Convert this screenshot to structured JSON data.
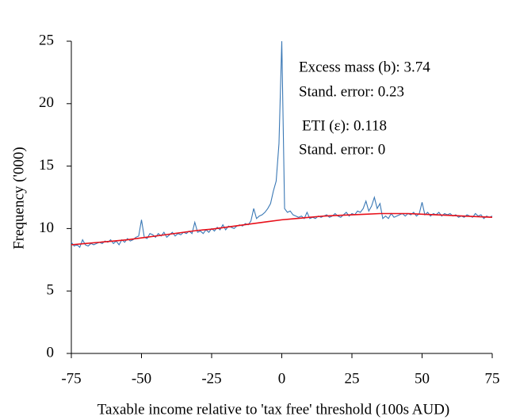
{
  "chart_data": {
    "type": "line",
    "xlabel": "Taxable income relative to 'tax free' threshold (100s AUD)",
    "ylabel": "Frequency ('000)",
    "annotations": [
      "Excess mass (b): 3.74",
      "Stand. error: 0.23",
      "ETI (ε): 0.118",
      "Stand. error: 0"
    ],
    "xlim": [
      -75,
      75
    ],
    "ylim": [
      0,
      25
    ],
    "xticks": [
      -75,
      -50,
      -25,
      0,
      25,
      50,
      75
    ],
    "yticks": [
      0,
      5,
      10,
      15,
      20,
      25
    ],
    "series": [
      {
        "color": "#3a78b5",
        "x": [
          -75,
          -74,
          -73,
          -72,
          -71,
          -70,
          -69,
          -68,
          -67,
          -66,
          -65,
          -64,
          -63,
          -62,
          -61,
          -60,
          -59,
          -58,
          -57,
          -56,
          -55,
          -54,
          -53,
          -52,
          -51,
          -50,
          -49,
          -48,
          -47,
          -46,
          -45,
          -44,
          -43,
          -42,
          -41,
          -40,
          -39,
          -38,
          -37,
          -36,
          -35,
          -34,
          -33,
          -32,
          -31,
          -30,
          -29,
          -28,
          -27,
          -26,
          -25,
          -24,
          -23,
          -22,
          -21,
          -20,
          -19,
          -18,
          -17,
          -16,
          -15,
          -14,
          -13,
          -12,
          -11,
          -10,
          -9,
          -8,
          -7,
          -6,
          -5,
          -4,
          -3,
          -2,
          -1,
          0,
          1,
          2,
          3,
          4,
          5,
          6,
          7,
          8,
          9,
          10,
          11,
          12,
          13,
          14,
          15,
          16,
          17,
          18,
          19,
          20,
          21,
          22,
          23,
          24,
          25,
          26,
          27,
          28,
          29,
          30,
          31,
          32,
          33,
          34,
          35,
          36,
          37,
          38,
          39,
          40,
          41,
          42,
          43,
          44,
          45,
          46,
          47,
          48,
          49,
          50,
          51,
          52,
          53,
          54,
          55,
          56,
          57,
          58,
          59,
          60,
          61,
          62,
          63,
          64,
          65,
          66,
          67,
          68,
          69,
          70,
          71,
          72,
          73,
          74,
          75
        ],
        "values": [
          8.9,
          8.6,
          8.7,
          8.5,
          9.1,
          8.7,
          8.6,
          8.8,
          8.7,
          8.8,
          8.9,
          8.8,
          9.0,
          8.9,
          9.1,
          8.8,
          9.0,
          8.7,
          9.1,
          8.9,
          9.2,
          9.0,
          9.1,
          9.3,
          9.4,
          10.7,
          9.3,
          9.2,
          9.6,
          9.5,
          9.3,
          9.6,
          9.4,
          9.7,
          9.3,
          9.5,
          9.7,
          9.4,
          9.6,
          9.5,
          9.7,
          9.6,
          9.8,
          9.6,
          10.5,
          9.7,
          9.8,
          9.6,
          9.9,
          9.7,
          10.0,
          9.8,
          10.1,
          9.9,
          10.3,
          9.9,
          10.2,
          10.1,
          10.0,
          10.2,
          10.3,
          10.2,
          10.4,
          10.3,
          10.6,
          11.6,
          10.8,
          11.0,
          11.1,
          11.3,
          11.6,
          12.0,
          13.0,
          13.8,
          16.8,
          25.0,
          11.6,
          11.3,
          11.4,
          11.1,
          11.0,
          10.9,
          11.0,
          10.8,
          11.3,
          10.8,
          10.9,
          10.8,
          11.0,
          10.9,
          11.0,
          11.1,
          10.9,
          11.0,
          11.2,
          11.0,
          10.9,
          11.1,
          11.3,
          11.0,
          11.2,
          11.1,
          11.4,
          11.3,
          11.6,
          12.2,
          11.4,
          11.8,
          12.5,
          11.6,
          12.0,
          10.8,
          11.0,
          10.8,
          11.2,
          10.9,
          11.0,
          11.1,
          11.2,
          11.0,
          11.2,
          11.1,
          11.3,
          11.0,
          11.2,
          12.1,
          11.1,
          11.3,
          11.0,
          11.2,
          11.1,
          11.3,
          11.0,
          11.2,
          11.1,
          11.2,
          11.0,
          11.1,
          10.9,
          11.0,
          10.9,
          11.1,
          11.0,
          10.9,
          11.2,
          11.0,
          11.1,
          10.8,
          11.0,
          10.9,
          11.0
        ]
      },
      {
        "color": "#e8101a",
        "x": [
          -75,
          -70,
          -65,
          -60,
          -55,
          -50,
          -45,
          -40,
          -35,
          -30,
          -25,
          -20,
          -15,
          -10,
          -5,
          0,
          5,
          10,
          15,
          20,
          25,
          30,
          35,
          40,
          45,
          50,
          55,
          60,
          65,
          70,
          75
        ],
        "values": [
          8.7,
          8.8,
          8.9,
          9.0,
          9.1,
          9.25,
          9.4,
          9.55,
          9.7,
          9.85,
          9.95,
          10.1,
          10.25,
          10.4,
          10.55,
          10.7,
          10.8,
          10.9,
          11.0,
          11.05,
          11.1,
          11.15,
          11.2,
          11.2,
          11.2,
          11.15,
          11.1,
          11.05,
          11.0,
          10.95,
          10.9
        ]
      }
    ]
  }
}
